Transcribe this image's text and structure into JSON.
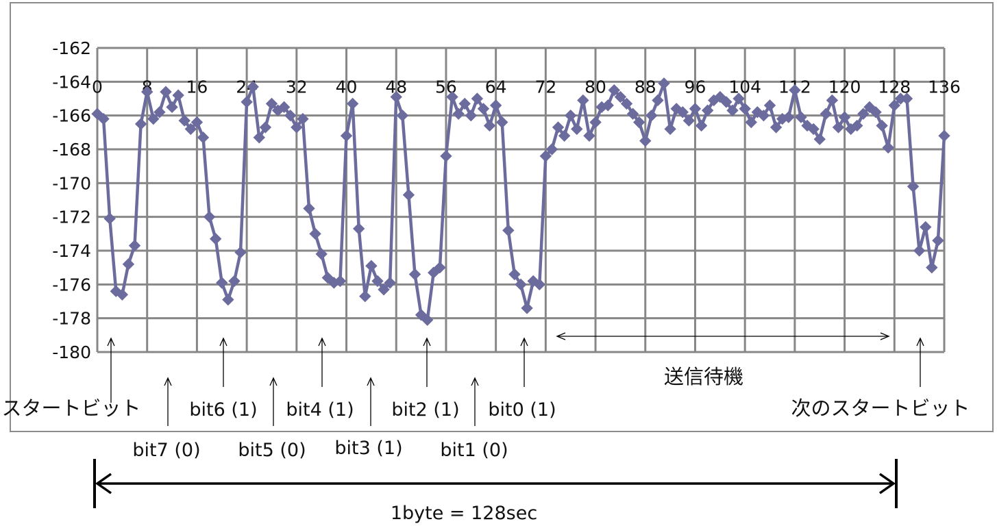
{
  "chart_data": {
    "type": "line",
    "title": "",
    "xlabel": "",
    "ylabel": "",
    "xlim": [
      0,
      136
    ],
    "ylim": [
      -180,
      -162
    ],
    "x_ticks": [
      "0",
      "8",
      "16",
      "24",
      "32",
      "40",
      "48",
      "56",
      "64",
      "72",
      "80",
      "88",
      "96",
      "104",
      "112",
      "120",
      "128",
      "136"
    ],
    "y_ticks": [
      "-162",
      "-164",
      "-166",
      "-168",
      "-170",
      "-172",
      "-174",
      "-176",
      "-178",
      "-180"
    ],
    "grid": true,
    "legend": "none",
    "series": [
      {
        "color": "#6b6b9e",
        "marker": "diamond",
        "x": [
          0,
          1,
          2,
          3,
          4,
          5,
          6,
          7,
          8,
          9,
          10,
          11,
          12,
          13,
          14,
          15,
          16,
          17,
          18,
          19,
          20,
          21,
          22,
          23,
          24,
          25,
          26,
          27,
          28,
          29,
          30,
          31,
          32,
          33,
          34,
          35,
          36,
          37,
          38,
          39,
          40,
          41,
          42,
          43,
          44,
          45,
          46,
          47,
          48,
          49,
          50,
          51,
          52,
          53,
          54,
          55,
          56,
          57,
          58,
          59,
          60,
          61,
          62,
          63,
          64,
          65,
          66,
          67,
          68,
          69,
          70,
          71,
          72,
          73,
          74,
          75,
          76,
          77,
          78,
          79,
          80,
          81,
          82,
          83,
          84,
          85,
          86,
          87,
          88,
          89,
          90,
          91,
          92,
          93,
          94,
          95,
          96,
          97,
          98,
          99,
          100,
          101,
          102,
          103,
          104,
          105,
          106,
          107,
          108,
          109,
          110,
          111,
          112,
          113,
          114,
          115,
          116,
          117,
          118,
          119,
          120,
          121,
          122,
          123,
          124,
          125,
          126,
          127,
          128,
          129,
          130,
          131,
          132,
          133,
          134,
          135,
          136
        ],
        "y": [
          -165.9,
          -166.2,
          -172.1,
          -176.4,
          -176.6,
          -174.8,
          -173.7,
          -166.5,
          -164.6,
          -166.2,
          -165.8,
          -164.6,
          -165.5,
          -164.8,
          -166.3,
          -166.8,
          -166.4,
          -167.3,
          -172.0,
          -173.3,
          -175.9,
          -176.9,
          -175.8,
          -174.1,
          -165.2,
          -164.3,
          -167.3,
          -166.7,
          -165.3,
          -165.7,
          -165.5,
          -166.0,
          -166.7,
          -166.2,
          -171.5,
          -173.0,
          -174.2,
          -175.6,
          -175.9,
          -175.8,
          -167.2,
          -165.3,
          -172.7,
          -176.7,
          -174.9,
          -175.8,
          -176.3,
          -175.9,
          -164.9,
          -166.0,
          -170.7,
          -175.4,
          -177.8,
          -178.1,
          -175.3,
          -175.0,
          -168.4,
          -164.9,
          -165.9,
          -165.3,
          -166.0,
          -165.0,
          -165.6,
          -166.6,
          -165.4,
          -166.4,
          -172.8,
          -175.4,
          -176.0,
          -177.4,
          -175.8,
          -176.0,
          -168.4,
          -168.0,
          -166.7,
          -167.2,
          -166.0,
          -166.8,
          -165.1,
          -167.2,
          -166.4,
          -165.5,
          -165.4,
          -164.5,
          -164.9,
          -165.3,
          -165.9,
          -166.4,
          -167.5,
          -166.0,
          -165.1,
          -164.1,
          -166.8,
          -165.6,
          -165.8,
          -166.3,
          -165.6,
          -166.6,
          -165.7,
          -165.1,
          -164.9,
          -165.2,
          -165.7,
          -165.0,
          -165.6,
          -166.4,
          -165.8,
          -166.0,
          -165.4,
          -166.7,
          -166.2,
          -166.1,
          -164.5,
          -166.1,
          -166.6,
          -166.8,
          -167.4,
          -165.9,
          -165.1,
          -166.7,
          -166.1,
          -166.8,
          -166.6,
          -165.9,
          -165.5,
          -165.8,
          -166.6,
          -167.9,
          -165.4,
          -165.0,
          -165.0,
          -170.2,
          -174.0,
          -172.6,
          -175.0,
          -173.4,
          -167.2
        ]
      }
    ],
    "annotations": {
      "start_bit": "スタートビット",
      "bit7": "bit7 (0)",
      "bit6": "bit6 (1)",
      "bit5": "bit5 (0)",
      "bit4": "bit4 (1)",
      "bit3": "bit3 (1)",
      "bit2": "bit2 (1)",
      "bit1": "bit1 (0)",
      "bit0": "bit0 (1)",
      "standby": "送信待機",
      "next_start_bit": "次のスタートビット",
      "byte_duration": "1byte = 128sec"
    }
  }
}
